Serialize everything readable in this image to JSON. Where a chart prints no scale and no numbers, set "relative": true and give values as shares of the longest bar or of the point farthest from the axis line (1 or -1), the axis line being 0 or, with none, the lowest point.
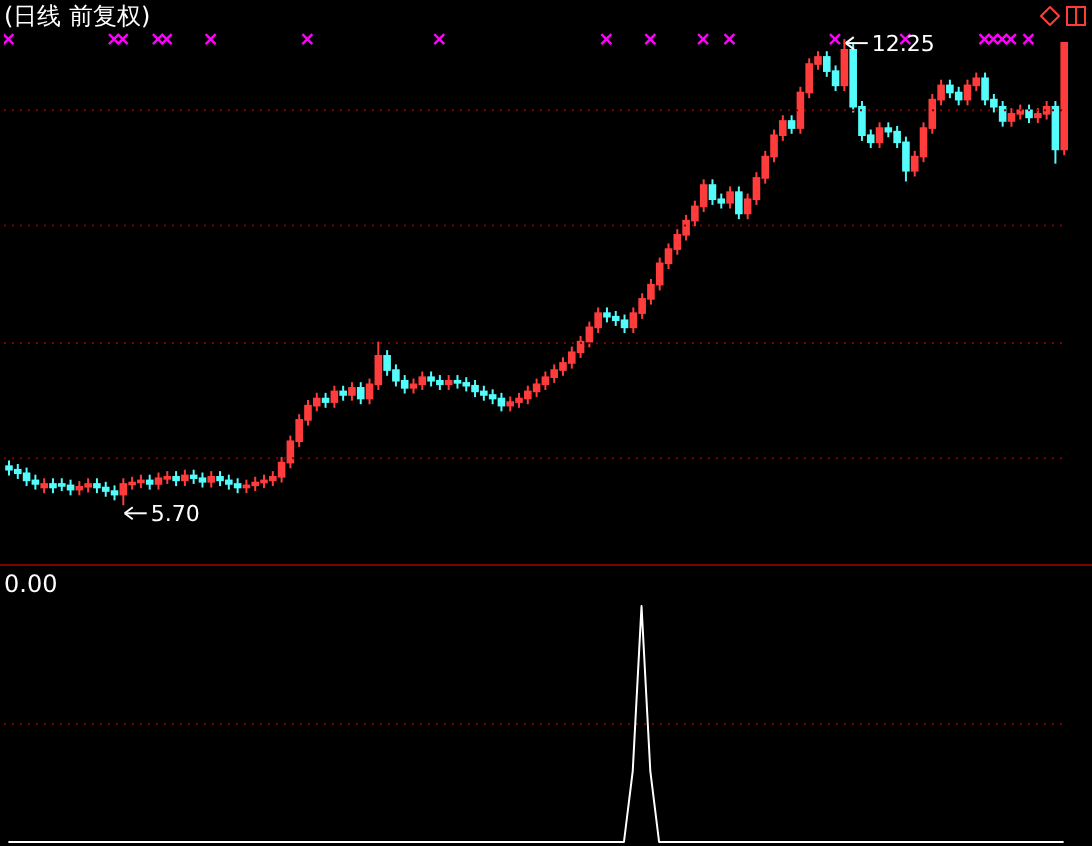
{
  "chart_data": [
    {
      "type": "candlestick",
      "title": "(日线 前复权)",
      "categories": [
        null,
        null,
        null,
        null,
        null,
        null,
        null,
        null,
        null,
        null,
        null,
        null,
        null,
        null,
        null,
        null,
        null,
        null,
        null,
        null,
        null,
        null,
        null,
        null,
        null,
        null,
        null,
        null,
        null,
        null,
        null,
        null,
        null,
        null,
        null,
        null,
        null,
        null,
        null,
        null,
        null,
        null,
        null,
        null,
        null,
        null,
        null,
        null,
        null,
        null,
        null,
        null,
        null,
        null,
        null,
        null,
        null,
        null,
        null,
        null,
        null,
        null,
        null,
        null,
        null,
        null,
        null,
        null,
        null,
        null,
        null,
        null,
        null,
        null,
        null,
        null,
        null,
        null,
        null,
        null,
        null,
        null,
        null,
        null,
        null,
        null,
        null,
        null,
        null,
        null,
        null,
        null,
        null,
        null,
        null,
        null,
        null,
        null,
        null,
        null,
        null,
        null,
        null,
        null,
        null,
        null,
        null,
        null,
        null,
        null,
        null,
        null,
        null,
        null,
        null,
        null,
        null,
        null,
        null,
        null,
        null
      ],
      "ohlc": [
        [
          6.25,
          6.33,
          6.12,
          6.2
        ],
        [
          6.2,
          6.28,
          6.07,
          6.15
        ],
        [
          6.15,
          6.23,
          5.97,
          6.05
        ],
        [
          6.05,
          6.13,
          5.92,
          6.0
        ],
        [
          5.95,
          6.08,
          5.87,
          6.0
        ],
        [
          6.0,
          6.08,
          5.87,
          5.95
        ],
        [
          6.0,
          6.08,
          5.9,
          5.98
        ],
        [
          5.98,
          6.06,
          5.84,
          5.92
        ],
        [
          5.92,
          6.04,
          5.84,
          5.96
        ],
        [
          5.96,
          6.08,
          5.88,
          6.0
        ],
        [
          6.0,
          6.08,
          5.87,
          5.95
        ],
        [
          5.95,
          6.03,
          5.82,
          5.9
        ],
        [
          5.9,
          5.98,
          5.77,
          5.85
        ],
        [
          5.85,
          6.08,
          5.7,
          6.0
        ],
        [
          6.0,
          6.1,
          5.92,
          6.02
        ],
        [
          6.02,
          6.13,
          5.94,
          6.05
        ],
        [
          6.05,
          6.13,
          5.92,
          6.0
        ],
        [
          6.0,
          6.16,
          5.92,
          6.08
        ],
        [
          6.08,
          6.18,
          6.0,
          6.1
        ],
        [
          6.1,
          6.18,
          5.97,
          6.05
        ],
        [
          6.05,
          6.2,
          5.97,
          6.12
        ],
        [
          6.12,
          6.2,
          6.0,
          6.08
        ],
        [
          6.08,
          6.16,
          5.95,
          6.03
        ],
        [
          6.03,
          6.18,
          5.95,
          6.1
        ],
        [
          6.1,
          6.18,
          5.97,
          6.05
        ],
        [
          6.05,
          6.13,
          5.92,
          6.0
        ],
        [
          6.0,
          6.08,
          5.87,
          5.95
        ],
        [
          5.95,
          6.06,
          5.87,
          5.98
        ],
        [
          5.98,
          6.1,
          5.9,
          6.02
        ],
        [
          6.02,
          6.13,
          5.94,
          6.05
        ],
        [
          6.05,
          6.18,
          5.97,
          6.1
        ],
        [
          6.1,
          6.38,
          6.02,
          6.3
        ],
        [
          6.3,
          6.68,
          6.22,
          6.6
        ],
        [
          6.6,
          6.98,
          6.52,
          6.9
        ],
        [
          6.9,
          7.18,
          6.82,
          7.1
        ],
        [
          7.1,
          7.28,
          7.02,
          7.2
        ],
        [
          7.2,
          7.28,
          7.07,
          7.15
        ],
        [
          7.15,
          7.38,
          7.07,
          7.3
        ],
        [
          7.3,
          7.38,
          7.17,
          7.25
        ],
        [
          7.25,
          7.43,
          7.17,
          7.35
        ],
        [
          7.35,
          7.43,
          7.12,
          7.2
        ],
        [
          7.2,
          7.48,
          7.12,
          7.4
        ],
        [
          7.4,
          8.0,
          7.32,
          7.8
        ],
        [
          7.8,
          7.88,
          7.52,
          7.6
        ],
        [
          7.6,
          7.68,
          7.37,
          7.45
        ],
        [
          7.45,
          7.53,
          7.27,
          7.35
        ],
        [
          7.35,
          7.48,
          7.27,
          7.4
        ],
        [
          7.4,
          7.58,
          7.32,
          7.5
        ],
        [
          7.5,
          7.58,
          7.37,
          7.45
        ],
        [
          7.45,
          7.53,
          7.32,
          7.4
        ],
        [
          7.4,
          7.53,
          7.32,
          7.45
        ],
        [
          7.45,
          7.53,
          7.34,
          7.42
        ],
        [
          7.42,
          7.5,
          7.3,
          7.38
        ],
        [
          7.38,
          7.46,
          7.22,
          7.3
        ],
        [
          7.3,
          7.38,
          7.17,
          7.25
        ],
        [
          7.25,
          7.33,
          7.12,
          7.2
        ],
        [
          7.2,
          7.28,
          7.02,
          7.1
        ],
        [
          7.1,
          7.23,
          7.02,
          7.15
        ],
        [
          7.15,
          7.28,
          7.07,
          7.2
        ],
        [
          7.2,
          7.38,
          7.12,
          7.3
        ],
        [
          7.3,
          7.48,
          7.22,
          7.4
        ],
        [
          7.4,
          7.58,
          7.32,
          7.5
        ],
        [
          7.5,
          7.68,
          7.42,
          7.6
        ],
        [
          7.6,
          7.78,
          7.52,
          7.7
        ],
        [
          7.7,
          7.93,
          7.62,
          7.85
        ],
        [
          7.85,
          8.08,
          7.77,
          8.0
        ],
        [
          8.0,
          8.28,
          7.92,
          8.2
        ],
        [
          8.2,
          8.48,
          8.12,
          8.4
        ],
        [
          8.4,
          8.48,
          8.27,
          8.35
        ],
        [
          8.35,
          8.43,
          8.22,
          8.3
        ],
        [
          8.3,
          8.38,
          8.12,
          8.2
        ],
        [
          8.2,
          8.48,
          8.12,
          8.4
        ],
        [
          8.4,
          8.68,
          8.32,
          8.6
        ],
        [
          8.6,
          8.88,
          8.52,
          8.8
        ],
        [
          8.8,
          9.18,
          8.72,
          9.1
        ],
        [
          9.1,
          9.38,
          9.02,
          9.3
        ],
        [
          9.3,
          9.58,
          9.22,
          9.5
        ],
        [
          9.5,
          9.78,
          9.42,
          9.7
        ],
        [
          9.7,
          9.98,
          9.62,
          9.9
        ],
        [
          9.9,
          10.28,
          9.82,
          10.2
        ],
        [
          10.2,
          10.28,
          9.92,
          10.0
        ],
        [
          10.0,
          10.08,
          9.87,
          9.95
        ],
        [
          9.95,
          10.18,
          9.87,
          10.1
        ],
        [
          10.1,
          10.18,
          9.72,
          9.8
        ],
        [
          9.8,
          10.08,
          9.72,
          10.0
        ],
        [
          10.0,
          10.38,
          9.92,
          10.3
        ],
        [
          10.3,
          10.68,
          10.22,
          10.6
        ],
        [
          10.6,
          10.98,
          10.52,
          10.9
        ],
        [
          10.9,
          11.18,
          10.82,
          11.1
        ],
        [
          11.1,
          11.18,
          10.92,
          11.0
        ],
        [
          11.0,
          11.58,
          10.92,
          11.5
        ],
        [
          11.5,
          11.98,
          11.42,
          11.9
        ],
        [
          11.9,
          12.08,
          11.82,
          12.0
        ],
        [
          12.0,
          12.08,
          11.72,
          11.8
        ],
        [
          11.8,
          11.88,
          11.52,
          11.6
        ],
        [
          11.6,
          12.25,
          11.52,
          12.1
        ],
        [
          12.1,
          12.18,
          11.22,
          11.3
        ],
        [
          11.3,
          11.38,
          10.82,
          10.9
        ],
        [
          10.9,
          10.98,
          10.72,
          10.8
        ],
        [
          10.8,
          11.08,
          10.72,
          11.0
        ],
        [
          11.0,
          11.08,
          10.87,
          10.95
        ],
        [
          10.95,
          11.03,
          10.72,
          10.8
        ],
        [
          10.8,
          10.88,
          10.25,
          10.4
        ],
        [
          10.4,
          10.68,
          10.32,
          10.6
        ],
        [
          10.6,
          11.08,
          10.52,
          11.0
        ],
        [
          11.0,
          11.48,
          10.92,
          11.4
        ],
        [
          11.4,
          11.68,
          11.32,
          11.6
        ],
        [
          11.6,
          11.68,
          11.42,
          11.5
        ],
        [
          11.5,
          11.58,
          11.32,
          11.4
        ],
        [
          11.4,
          11.68,
          11.32,
          11.6
        ],
        [
          11.6,
          11.78,
          11.52,
          11.7
        ],
        [
          11.7,
          11.78,
          11.32,
          11.4
        ],
        [
          11.4,
          11.48,
          11.22,
          11.3
        ],
        [
          11.3,
          11.38,
          11.02,
          11.1
        ],
        [
          11.1,
          11.28,
          11.02,
          11.2
        ],
        [
          11.2,
          11.33,
          11.12,
          11.25
        ],
        [
          11.25,
          11.33,
          11.07,
          11.15
        ],
        [
          11.15,
          11.28,
          11.07,
          11.2
        ],
        [
          11.2,
          11.38,
          11.12,
          11.3
        ],
        [
          11.3,
          11.38,
          10.5,
          10.7
        ],
        [
          10.7,
          12.2,
          10.62,
          12.2
        ]
      ],
      "series": [
        {
          "type": "scatter",
          "color": "#ff00ff",
          "marker": "cross",
          "values": [
            12.25,
            null,
            null,
            null,
            null,
            null,
            null,
            null,
            null,
            null,
            null,
            null,
            12.25,
            12.25,
            null,
            null,
            null,
            12.25,
            12.25,
            null,
            null,
            null,
            null,
            12.25,
            null,
            null,
            null,
            null,
            null,
            null,
            null,
            null,
            null,
            null,
            12.25,
            null,
            null,
            null,
            null,
            null,
            null,
            null,
            null,
            null,
            null,
            null,
            null,
            null,
            null,
            12.25,
            null,
            null,
            null,
            null,
            null,
            null,
            null,
            null,
            null,
            null,
            null,
            null,
            null,
            null,
            null,
            null,
            null,
            null,
            12.25,
            null,
            null,
            null,
            null,
            12.25,
            null,
            null,
            null,
            null,
            null,
            12.25,
            null,
            null,
            12.25,
            null,
            null,
            null,
            null,
            null,
            null,
            null,
            null,
            null,
            null,
            null,
            12.25,
            null,
            null,
            null,
            null,
            null,
            null,
            null,
            12.25,
            null,
            null,
            null,
            null,
            null,
            null,
            null,
            null,
            12.25,
            12.25,
            12.25,
            12.25,
            null,
            12.25,
            null,
            null,
            null,
            null
          ]
        }
      ],
      "yticks": [
        {
          "value": 6.36,
          "label": null
        },
        {
          "value": 7.98,
          "label": null
        },
        {
          "value": 9.63,
          "label": null
        },
        {
          "value": 11.25,
          "label": null
        }
      ],
      "grid": "y",
      "tick_labels": false,
      "annotations": [
        "12.25",
        "5.70"
      ]
    },
    {
      "type": "line",
      "relative": true,
      "color": "#ffffff",
      "tick_labels": false,
      "categories": [
        null,
        null,
        null,
        null,
        null,
        null,
        null,
        null,
        null,
        null,
        null,
        null,
        null,
        null,
        null,
        null,
        null,
        null,
        null,
        null,
        null,
        null,
        null,
        null,
        null,
        null,
        null,
        null,
        null,
        null,
        null,
        null,
        null,
        null,
        null,
        null,
        null,
        null,
        null,
        null,
        null,
        null,
        null,
        null,
        null,
        null,
        null,
        null,
        null,
        null,
        null,
        null,
        null,
        null,
        null,
        null,
        null,
        null,
        null,
        null,
        null,
        null,
        null,
        null,
        null,
        null,
        null,
        null,
        null,
        null,
        null,
        null,
        null,
        null,
        null,
        null,
        null,
        null,
        null,
        null,
        null,
        null,
        null,
        null,
        null,
        null,
        null,
        null,
        null,
        null,
        null,
        null,
        null,
        null,
        null,
        null,
        null,
        null,
        null,
        null,
        null,
        null,
        null,
        null,
        null,
        null,
        null,
        null,
        null,
        null,
        null,
        null,
        null,
        null,
        null,
        null,
        null,
        null,
        null,
        null,
        null
      ],
      "values": [
        0,
        0,
        0,
        0,
        0,
        0,
        0,
        0,
        0,
        0,
        0,
        0,
        0,
        0,
        0,
        0,
        0,
        0,
        0,
        0,
        0,
        0,
        0,
        0,
        0,
        0,
        0,
        0,
        0,
        0,
        0,
        0,
        0,
        0,
        0,
        0,
        0,
        0,
        0,
        0,
        0,
        0,
        0,
        0,
        0,
        0,
        0,
        0,
        0,
        0,
        0,
        0,
        0,
        0,
        0,
        0,
        0,
        0,
        0,
        0,
        0,
        0,
        0,
        0,
        0,
        0,
        0,
        0,
        0,
        0,
        0,
        0.3,
        1,
        0.3,
        0,
        0,
        0,
        0,
        0,
        0,
        0,
        0,
        0,
        0,
        0,
        0,
        0,
        0,
        0,
        0,
        0,
        0,
        0,
        0,
        0,
        0,
        0,
        0,
        0,
        0,
        0,
        0,
        0,
        0,
        0,
        0,
        0,
        0,
        0,
        0,
        0,
        0,
        0,
        0,
        0,
        0,
        0,
        0,
        0,
        0,
        0
      ],
      "ref_lines": [
        {
          "axis": "y",
          "value": 0.5,
          "color": "#800000",
          "line_style": "dotted"
        }
      ],
      "annotations": [
        "0.00"
      ]
    }
  ]
}
